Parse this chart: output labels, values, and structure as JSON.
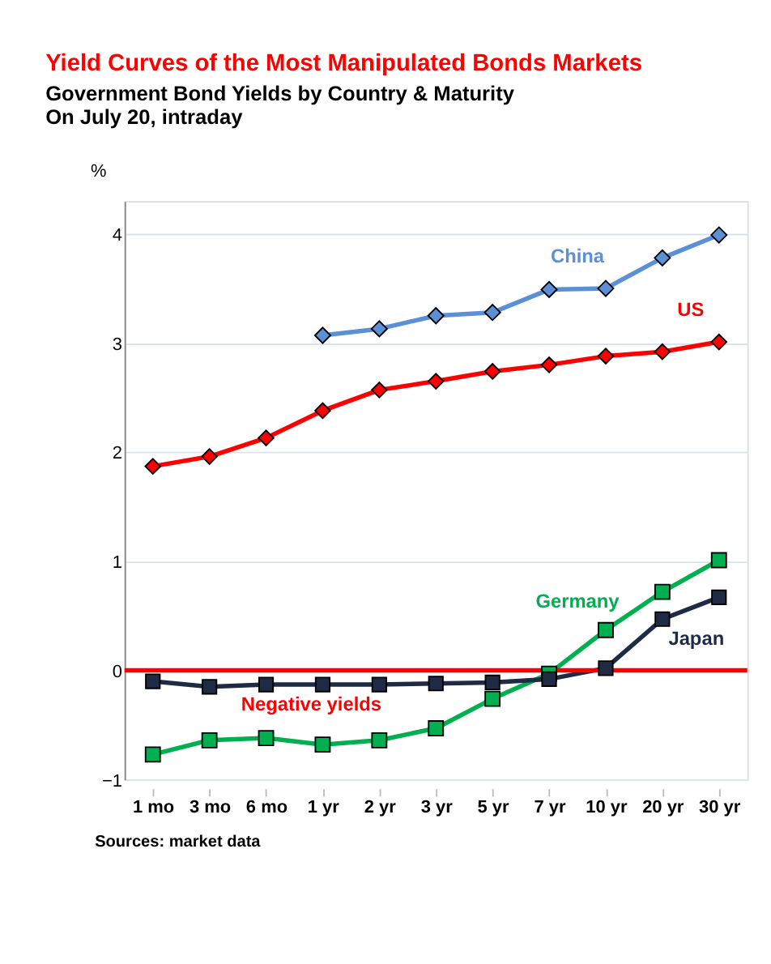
{
  "chart_data": {
    "type": "line",
    "title": "Yield Curves of the Most Manipulated Bonds Markets",
    "subtitle": "Government Bond Yields by Country & Maturity",
    "ylabel": "%",
    "categories": [
      "1 mo",
      "3 mo",
      "6 mo",
      "1 yr",
      "2 yr",
      "3 yr",
      "5 yr",
      "7 yr",
      "10 yr",
      "20 yr",
      "30 yr"
    ],
    "series": [
      {
        "name": "China",
        "color": "#5b8fd6",
        "marker": "diamond",
        "values": [
          null,
          null,
          null,
          3.07,
          3.13,
          3.25,
          3.28,
          3.49,
          3.5,
          3.78,
          3.99
        ]
      },
      {
        "name": "US",
        "color": "#ff0000",
        "marker": "diamond",
        "values": [
          1.87,
          1.96,
          2.13,
          2.38,
          2.57,
          2.65,
          2.74,
          2.8,
          2.88,
          2.92,
          3.01
        ]
      },
      {
        "name": "Germany",
        "color": "#00b050",
        "marker": "square",
        "values": [
          -0.77,
          -0.64,
          -0.62,
          -0.68,
          -0.64,
          -0.53,
          -0.26,
          -0.03,
          0.37,
          0.72,
          1.01
        ]
      },
      {
        "name": "Japan",
        "color": "#1f2a44",
        "marker": "square",
        "values": [
          -0.1,
          -0.15,
          -0.13,
          -0.13,
          -0.13,
          -0.12,
          -0.11,
          -0.08,
          0.02,
          0.47,
          0.67
        ]
      }
    ],
    "ylim": [
      -1,
      4.3
    ],
    "yticks": [
      -1,
      0,
      1,
      2,
      3,
      4
    ],
    "grid": "y",
    "legend": false,
    "ref_lines": [
      {
        "axis": "y",
        "value": 0,
        "color": "#ff0000"
      }
    ],
    "annotations": [
      "On July 20, intraday",
      "Negative yields",
      "Sources: market data"
    ]
  }
}
